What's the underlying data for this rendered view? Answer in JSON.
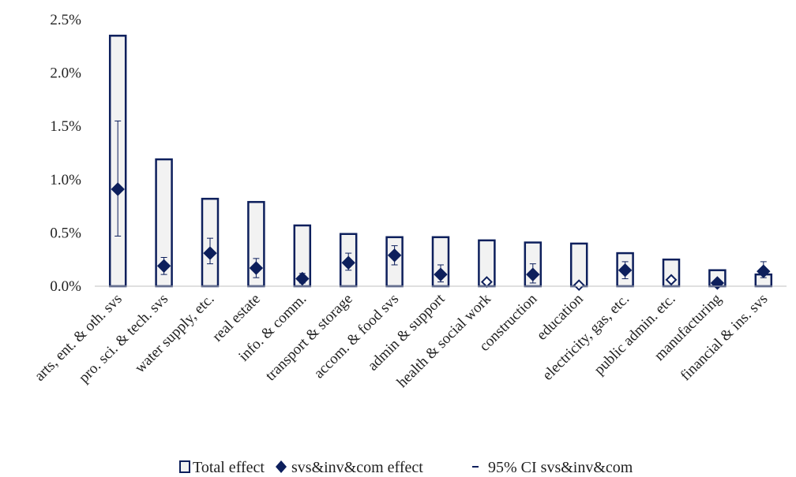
{
  "chart_data": {
    "type": "bar",
    "categories": [
      "arts, ent. & oth. svs",
      "pro. sci. & tech. svs",
      "water supply, etc.",
      "real estate",
      "info. & comm.",
      "transport & storage",
      "accom. & food svs",
      "admin & support",
      "health & social work",
      "construction",
      "education",
      "electricity, gas, etc.",
      "public admin. etc.",
      "manufacturing",
      "financial & ins. svs"
    ],
    "series": [
      {
        "name": "Total effect",
        "kind": "bar",
        "values": [
          2.35,
          1.19,
          0.82,
          0.79,
          0.57,
          0.49,
          0.46,
          0.46,
          0.43,
          0.41,
          0.4,
          0.31,
          0.25,
          0.15,
          0.11
        ]
      },
      {
        "name": "svs&inv&com effect",
        "kind": "diamond",
        "values": [
          0.91,
          0.19,
          0.31,
          0.17,
          0.07,
          0.22,
          0.29,
          0.11,
          0.04,
          0.11,
          0.01,
          0.15,
          0.06,
          0.03,
          0.14
        ],
        "significant": [
          true,
          true,
          true,
          true,
          true,
          true,
          true,
          true,
          false,
          true,
          false,
          true,
          false,
          true,
          true
        ]
      },
      {
        "name": "95% CI svs&inv&com",
        "kind": "errorbar",
        "lower": [
          0.47,
          0.11,
          0.21,
          0.08,
          0.03,
          0.15,
          0.2,
          0.04,
          null,
          0.03,
          null,
          0.07,
          null,
          0.01,
          0.08
        ],
        "upper": [
          1.55,
          0.27,
          0.45,
          0.26,
          0.12,
          0.31,
          0.38,
          0.2,
          null,
          0.21,
          null,
          0.23,
          null,
          0.05,
          0.23
        ]
      }
    ],
    "yaxis": {
      "ticks": [
        "0.0%",
        "0.5%",
        "1.0%",
        "1.5%",
        "2.0%",
        "2.5%"
      ],
      "tick_values": [
        0,
        0.5,
        1.0,
        1.5,
        2.0,
        2.5
      ],
      "ylim": [
        0,
        2.5
      ]
    },
    "grid": false,
    "legend_position": "bottom",
    "colors": {
      "bar_fill": "#f2f2f2",
      "bar_stroke": "#0d1f5c",
      "marker": "#0d1f5c",
      "errorbar": "#0d1f5c"
    }
  },
  "legend": {
    "total_label": "Total effect",
    "svs_label": "svs&inv&com effect",
    "ci_label": "95% CI svs&inv&com"
  }
}
